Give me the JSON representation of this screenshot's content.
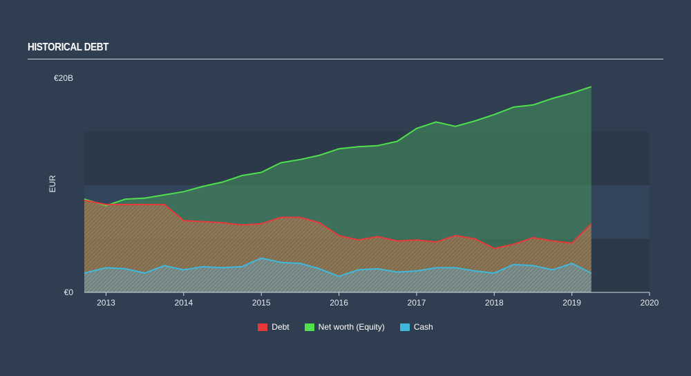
{
  "title": "HISTORICAL DEBT",
  "chart_data": {
    "type": "area",
    "ylabel": "EUR",
    "y_ticks": [
      {
        "value": 0,
        "label": "€0"
      },
      {
        "value": 20,
        "label": "€20B"
      }
    ],
    "ylim": [
      0,
      20
    ],
    "xlim": [
      2012.72,
      2020
    ],
    "x_ticks": [
      {
        "value": 2013,
        "label": "2013"
      },
      {
        "value": 2014,
        "label": "2014"
      },
      {
        "value": 2015,
        "label": "2015"
      },
      {
        "value": 2016,
        "label": "2016"
      },
      {
        "value": 2017,
        "label": "2017"
      },
      {
        "value": 2018,
        "label": "2018"
      },
      {
        "value": 2019,
        "label": "2019"
      },
      {
        "value": 2020,
        "label": "2020"
      }
    ],
    "legend_position": "bottom",
    "series": [
      {
        "name": "Debt",
        "color": "#e8393a",
        "x": [
          2012.72,
          2013.0,
          2013.5,
          2013.75,
          2013.85,
          2014.0,
          2014.5,
          2014.75,
          2015.0,
          2015.25,
          2015.5,
          2015.75,
          2016.0,
          2016.25,
          2016.5,
          2016.75,
          2017.0,
          2017.25,
          2017.5,
          2017.75,
          2018.0,
          2018.25,
          2018.5,
          2018.75,
          2019.0,
          2019.25
        ],
        "values": [
          8.6,
          8.2,
          8.2,
          8.2,
          7.6,
          6.7,
          6.5,
          6.3,
          6.4,
          7.0,
          7.0,
          6.5,
          5.3,
          4.9,
          5.2,
          4.8,
          4.9,
          4.7,
          5.3,
          5.0,
          4.1,
          4.5,
          5.1,
          4.8,
          4.6,
          6.4
        ]
      },
      {
        "name": "Net worth (Equity)",
        "color": "#4fe04d",
        "x": [
          2012.72,
          2013.0,
          2013.25,
          2013.5,
          2013.75,
          2014.0,
          2014.25,
          2014.5,
          2014.75,
          2015.0,
          2015.25,
          2015.5,
          2015.75,
          2016.0,
          2016.25,
          2016.5,
          2016.75,
          2017.0,
          2017.25,
          2017.5,
          2017.75,
          2018.0,
          2018.25,
          2018.5,
          2018.75,
          2019.0,
          2019.25
        ],
        "values": [
          8.7,
          8.1,
          8.7,
          8.8,
          9.1,
          9.4,
          9.9,
          10.3,
          10.9,
          11.2,
          12.1,
          12.4,
          12.8,
          13.4,
          13.6,
          13.7,
          14.1,
          15.3,
          15.9,
          15.5,
          16.0,
          16.6,
          17.3,
          17.5,
          18.1,
          18.6,
          19.2
        ]
      },
      {
        "name": "Cash",
        "color": "#3fb8dc",
        "x": [
          2012.72,
          2013.0,
          2013.25,
          2013.5,
          2013.75,
          2014.0,
          2014.25,
          2014.5,
          2014.75,
          2015.0,
          2015.25,
          2015.5,
          2015.75,
          2016.0,
          2016.25,
          2016.5,
          2016.75,
          2017.0,
          2017.25,
          2017.5,
          2017.75,
          2018.0,
          2018.25,
          2018.5,
          2018.75,
          2019.0,
          2019.25
        ],
        "values": [
          1.8,
          2.3,
          2.2,
          1.8,
          2.5,
          2.1,
          2.4,
          2.3,
          2.4,
          3.2,
          2.8,
          2.7,
          2.2,
          1.5,
          2.1,
          2.2,
          1.9,
          2.0,
          2.3,
          2.3,
          2.0,
          1.8,
          2.6,
          2.5,
          2.1,
          2.7,
          1.8
        ]
      }
    ]
  }
}
